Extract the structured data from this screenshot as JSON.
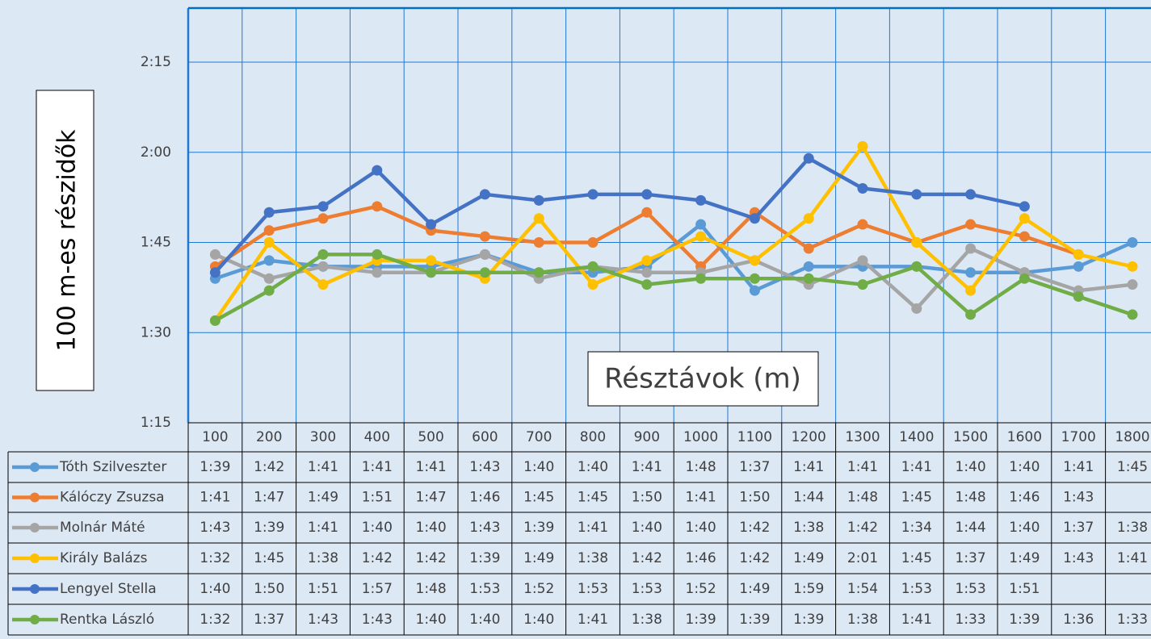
{
  "chart_data": {
    "type": "line",
    "y_axis_label": "100 m-es részidők",
    "x_axis_label": "Résztávok (m)",
    "categories": [
      "100",
      "200",
      "300",
      "400",
      "500",
      "600",
      "700",
      "800",
      "900",
      "1000",
      "1100",
      "1200",
      "1300",
      "1400",
      "1500",
      "1600",
      "1700",
      "1800"
    ],
    "ylim": [
      75,
      144
    ],
    "yticks": [
      {
        "value": 75,
        "label": "1:15"
      },
      {
        "value": 90,
        "label": "1:30"
      },
      {
        "value": 105,
        "label": "1:45"
      },
      {
        "value": 120,
        "label": "2:00"
      },
      {
        "value": 135,
        "label": "2:15"
      }
    ],
    "grid": true,
    "series": [
      {
        "name": "Tóth Szilveszter",
        "color": "#5b9bd5",
        "values": [
          99,
          102,
          101,
          101,
          101,
          103,
          100,
          100,
          101,
          108,
          97,
          101,
          101,
          101,
          100,
          100,
          101,
          105
        ],
        "value_labels": [
          "1:39",
          "1:42",
          "1:41",
          "1:41",
          "1:41",
          "1:43",
          "1:40",
          "1:40",
          "1:41",
          "1:48",
          "1:37",
          "1:41",
          "1:41",
          "1:41",
          "1:40",
          "1:40",
          "1:41",
          "1:45"
        ]
      },
      {
        "name": "Kálóczy Zsuzsa",
        "color": "#ed7d31",
        "values": [
          101,
          107,
          109,
          111,
          107,
          106,
          105,
          105,
          110,
          101,
          110,
          104,
          108,
          105,
          108,
          106,
          103,
          null
        ],
        "value_labels": [
          "1:41",
          "1:47",
          "1:49",
          "1:51",
          "1:47",
          "1:46",
          "1:45",
          "1:45",
          "1:50",
          "1:41",
          "1:50",
          "1:44",
          "1:48",
          "1:45",
          "1:48",
          "1:46",
          "1:43",
          null
        ]
      },
      {
        "name": "Molnár Máté",
        "color": "#a5a5a5",
        "values": [
          103,
          99,
          101,
          100,
          100,
          103,
          99,
          101,
          100,
          100,
          102,
          98,
          102,
          94,
          104,
          100,
          97,
          98
        ],
        "value_labels": [
          "1:43",
          "1:39",
          "1:41",
          "1:40",
          "1:40",
          "1:43",
          "1:39",
          "1:41",
          "1:40",
          "1:40",
          "1:42",
          "1:38",
          "1:42",
          "1:34",
          "1:44",
          "1:40",
          "1:37",
          "1:38"
        ]
      },
      {
        "name": "Király Balázs",
        "color": "#ffc000",
        "values": [
          92,
          105,
          98,
          102,
          102,
          99,
          109,
          98,
          102,
          106,
          102,
          109,
          121,
          105,
          97,
          109,
          103,
          101
        ],
        "value_labels": [
          "1:32",
          "1:45",
          "1:38",
          "1:42",
          "1:42",
          "1:39",
          "1:49",
          "1:38",
          "1:42",
          "1:46",
          "1:42",
          "1:49",
          "2:01",
          "1:45",
          "1:37",
          "1:49",
          "1:43",
          "1:41"
        ]
      },
      {
        "name": "Lengyel Stella",
        "color": "#4472c4",
        "values": [
          100,
          110,
          111,
          117,
          108,
          113,
          112,
          113,
          113,
          112,
          109,
          119,
          114,
          113,
          113,
          111,
          null,
          null
        ],
        "value_labels": [
          "1:40",
          "1:50",
          "1:51",
          "1:57",
          "1:48",
          "1:53",
          "1:52",
          "1:53",
          "1:53",
          "1:52",
          "1:49",
          "1:59",
          "1:54",
          "1:53",
          "1:53",
          "1:51",
          null,
          null
        ]
      },
      {
        "name": "Rentka László",
        "color": "#70ad47",
        "values": [
          92,
          97,
          103,
          103,
          100,
          100,
          100,
          101,
          98,
          99,
          99,
          99,
          98,
          101,
          93,
          99,
          96,
          93
        ],
        "value_labels": [
          "1:32",
          "1:37",
          "1:43",
          "1:43",
          "1:40",
          "1:40",
          "1:40",
          "1:41",
          "1:38",
          "1:39",
          "1:39",
          "1:39",
          "1:38",
          "1:41",
          "1:33",
          "1:39",
          "1:36",
          "1:33"
        ]
      }
    ]
  }
}
